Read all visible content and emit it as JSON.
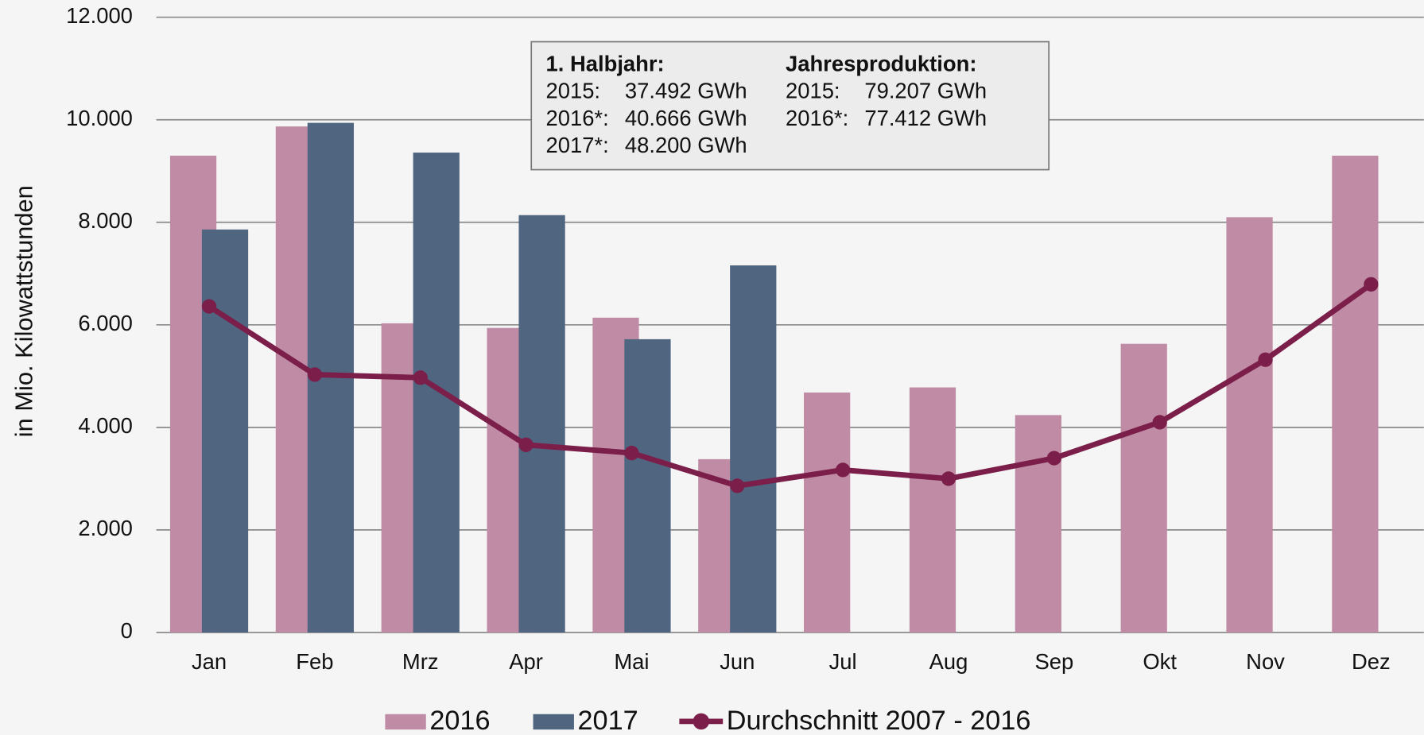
{
  "chart_data": {
    "type": "bar",
    "y_label": "in Mio. Kilowattstunden",
    "categories": [
      "Jan",
      "Feb",
      "Mrz",
      "Apr",
      "Mai",
      "Jun",
      "Jul",
      "Aug",
      "Sep",
      "Okt",
      "Nov",
      "Dez"
    ],
    "series": [
      {
        "name": "2016",
        "type": "bar",
        "color": "#c08ca5",
        "values": [
          9300,
          9870,
          6030,
          5940,
          6140,
          3380,
          4680,
          4780,
          4240,
          5630,
          8100,
          9300
        ]
      },
      {
        "name": "2017",
        "type": "bar",
        "color": "#4f6580",
        "values": [
          7860,
          9940,
          9360,
          8140,
          5720,
          7160,
          null,
          null,
          null,
          null,
          null,
          null
        ]
      },
      {
        "name": "Durchschnitt 2007 - 2016",
        "type": "line",
        "color": "#7b1e4a",
        "values": [
          6360,
          5030,
          4970,
          3660,
          3500,
          2860,
          3170,
          3000,
          3400,
          4100,
          5320,
          6790
        ]
      }
    ],
    "ylim": [
      0,
      12000
    ],
    "yticks": [
      0,
      {
        "value": 2000,
        "label": "2.000"
      },
      {
        "value": 4000,
        "label": "4.000"
      },
      {
        "value": 6000,
        "label": "6.000"
      },
      {
        "value": 8000,
        "label": "8.000"
      },
      {
        "value": 10000,
        "label": "10.000"
      },
      {
        "value": 12000,
        "label": "12.000"
      }
    ],
    "grid": true,
    "legend": "bottom",
    "annotation": {
      "columns": [
        {
          "heading": "1. Halbjahr:",
          "rows": [
            [
              "2015:",
              "37.492 GWh"
            ],
            [
              "2016*:",
              "40.666 GWh"
            ],
            [
              "2017*:",
              "48.200 GWh"
            ]
          ]
        },
        {
          "heading": "Jahresproduktion:",
          "rows": [
            [
              "2015:",
              "79.207 GWh"
            ],
            [
              "2016*:",
              "77.412 GWh"
            ]
          ]
        }
      ]
    }
  }
}
